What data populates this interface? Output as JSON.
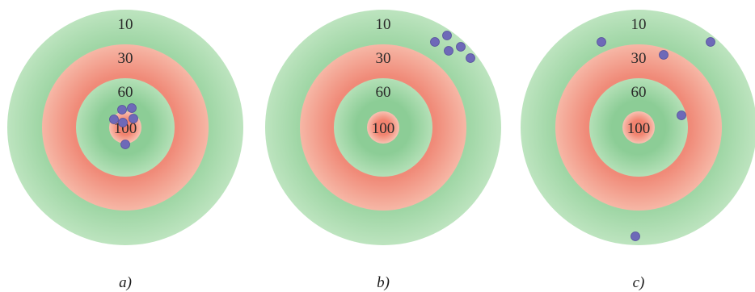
{
  "targets": [
    {
      "caption": "a)",
      "ring_labels": [
        "10",
        "30",
        "60",
        "100"
      ],
      "hit_count": 6
    },
    {
      "caption": "b)",
      "ring_labels": [
        "10",
        "30",
        "60",
        "100"
      ],
      "hit_count": 5
    },
    {
      "caption": "c)",
      "ring_labels": [
        "10",
        "30",
        "60",
        "100"
      ],
      "hit_count": 5
    }
  ],
  "colors": {
    "outer_ring": "#9fd6a5",
    "outer_ring_edge": "#bde4bf",
    "second_ring": "#f08a78",
    "second_ring_edge": "#f6b7a6",
    "inner_ring": "#8ccd96",
    "inner_ring_edge": "#b4e0b7",
    "bullseye": "#f2836f",
    "bullseye_edge": "#f8c1b2",
    "hit": "#6e69b8"
  }
}
